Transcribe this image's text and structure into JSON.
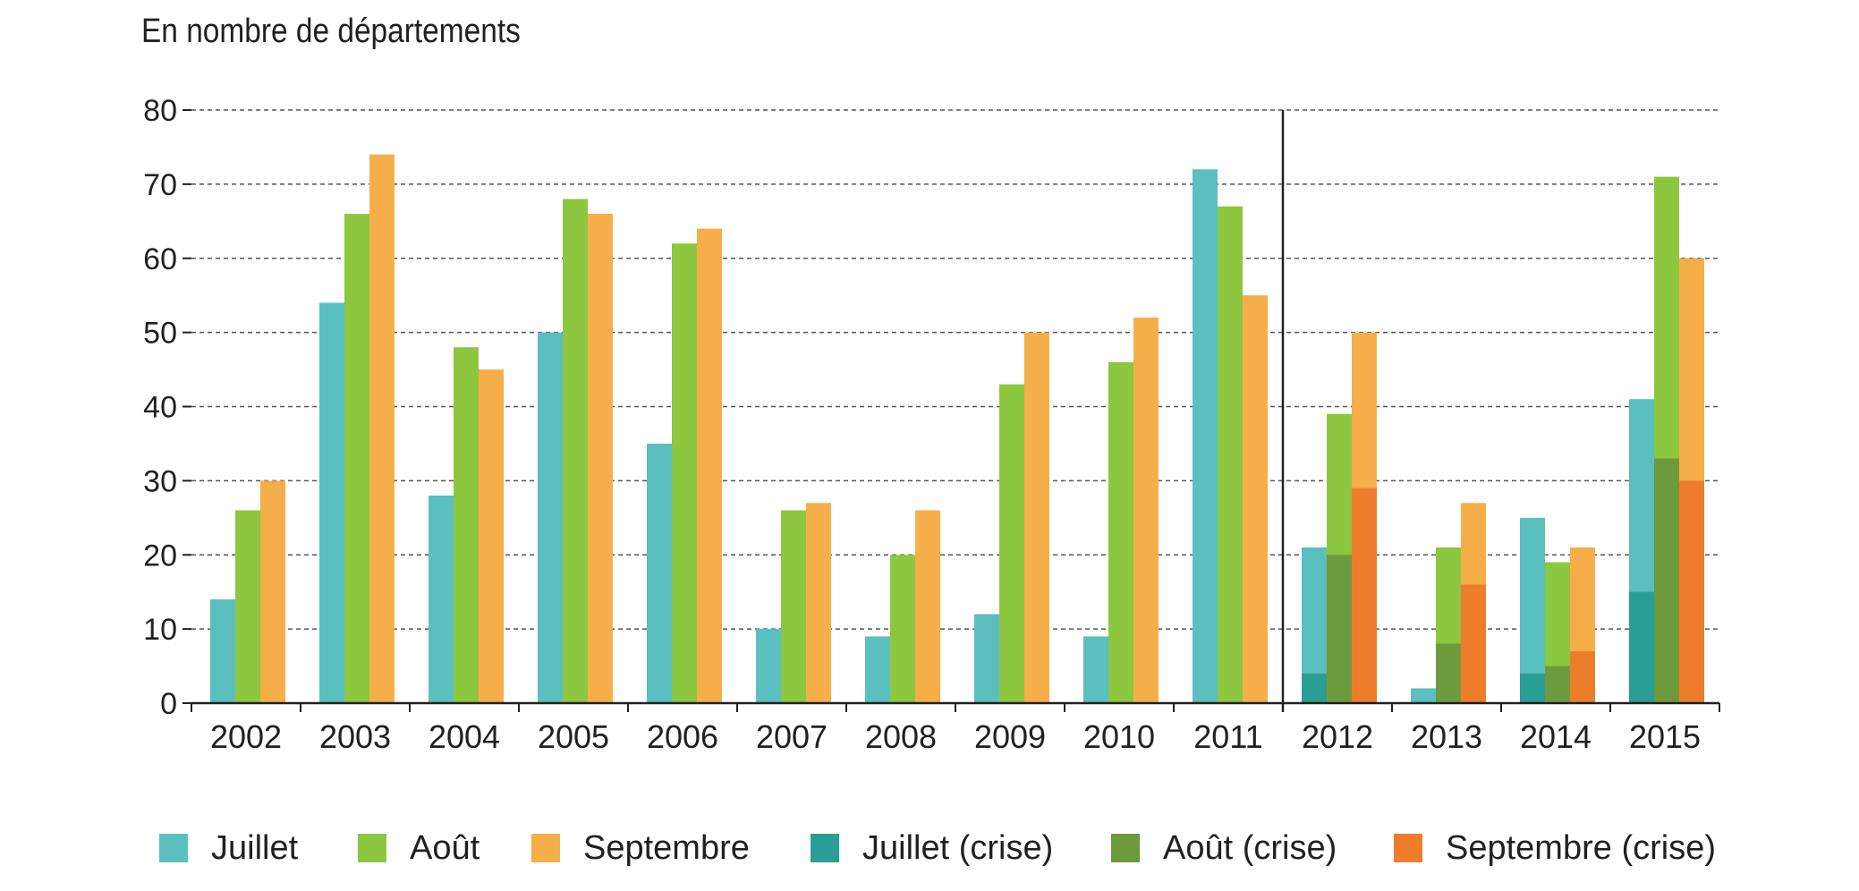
{
  "chart_data": {
    "type": "bar",
    "title": "En nombre de départements",
    "xlabel": "",
    "ylabel": "",
    "ylim": [
      0,
      80
    ],
    "yticks": [
      0,
      10,
      20,
      30,
      40,
      50,
      60,
      70,
      80
    ],
    "grid": true,
    "legend_position": "bottom",
    "categories": [
      "2002",
      "2003",
      "2004",
      "2005",
      "2006",
      "2007",
      "2008",
      "2009",
      "2010",
      "2011",
      "2012",
      "2013",
      "2014",
      "2015"
    ],
    "separator_after": "2011",
    "series": [
      {
        "name": "Juillet",
        "color": "#5bbfbf",
        "values": [
          14,
          54,
          28,
          50,
          35,
          10,
          9,
          12,
          9,
          72,
          21,
          2,
          25,
          41
        ]
      },
      {
        "name": "Août",
        "color": "#8dc63f",
        "values": [
          26,
          66,
          48,
          68,
          62,
          26,
          20,
          43,
          46,
          67,
          39,
          21,
          19,
          71
        ]
      },
      {
        "name": "Septembre",
        "color": "#f6ae4a",
        "values": [
          30,
          74,
          45,
          66,
          64,
          27,
          26,
          50,
          52,
          55,
          50,
          27,
          21,
          60
        ]
      },
      {
        "name": "Juillet (crise)",
        "color": "#2a9d94",
        "values": [
          null,
          null,
          null,
          null,
          null,
          null,
          null,
          null,
          null,
          null,
          4,
          0,
          4,
          15
        ]
      },
      {
        "name": "Août (crise)",
        "color": "#6e9a3e",
        "values": [
          null,
          null,
          null,
          null,
          null,
          null,
          null,
          null,
          null,
          null,
          20,
          8,
          5,
          33
        ]
      },
      {
        "name": "Septembre (crise)",
        "color": "#ee7d2b",
        "values": [
          null,
          null,
          null,
          null,
          null,
          null,
          null,
          null,
          null,
          null,
          29,
          16,
          7,
          30
        ]
      }
    ]
  }
}
